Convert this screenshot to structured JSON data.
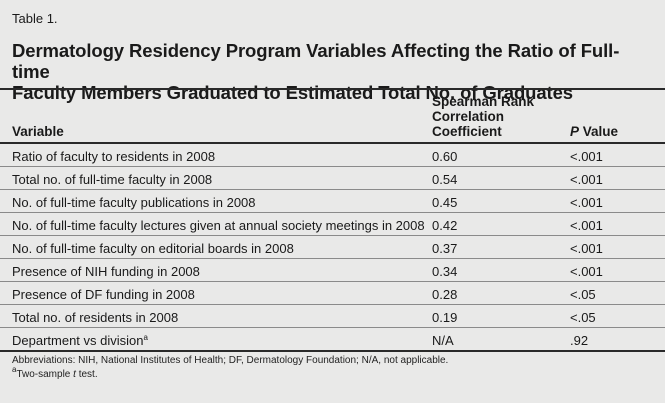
{
  "table_label": "Table 1.",
  "title_line1": "Dermatology Residency Program Variables Affecting the Ratio of Full-time",
  "title_line2": "Faculty Members Graduated to Estimated Total No. of Graduates",
  "headers": {
    "variable": "Variable",
    "coef_line1": "Spearman Rank",
    "coef_line2": "Correlation",
    "coef_line3": "Coefficient",
    "p_italic": "P",
    "p_rest": " Value"
  },
  "rows": [
    {
      "variable": "Ratio of faculty to residents in 2008",
      "coef": "0.60",
      "p": "<.001"
    },
    {
      "variable": "Total no. of full-time faculty in 2008",
      "coef": "0.54",
      "p": "<.001"
    },
    {
      "variable": "No. of full-time faculty publications in 2008",
      "coef": "0.45",
      "p": "<.001"
    },
    {
      "variable": "No. of full-time faculty lectures given at annual society meetings in 2008",
      "coef": "0.42",
      "p": "<.001"
    },
    {
      "variable": "No. of full-time faculty on editorial boards in 2008",
      "coef": "0.37",
      "p": "<.001"
    },
    {
      "variable": "Presence of NIH funding in 2008",
      "coef": "0.34",
      "p": "<.001"
    },
    {
      "variable": "Presence of DF funding in 2008",
      "coef": "0.28",
      "p": "<.05"
    },
    {
      "variable": "Total no. of residents in 2008",
      "coef": "0.19",
      "p": "<.05"
    },
    {
      "variable": "Department vs division",
      "sup": "a",
      "coef": "N/A",
      "p": ".92"
    }
  ],
  "footnotes": {
    "abbreviations": "Abbreviations: NIH, National Institutes of Health; DF, Dermatology Foundation; N/A, not applicable.",
    "note_marker": "a",
    "note_pre": "Two-sample ",
    "note_italic": "t",
    "note_post": " test."
  }
}
